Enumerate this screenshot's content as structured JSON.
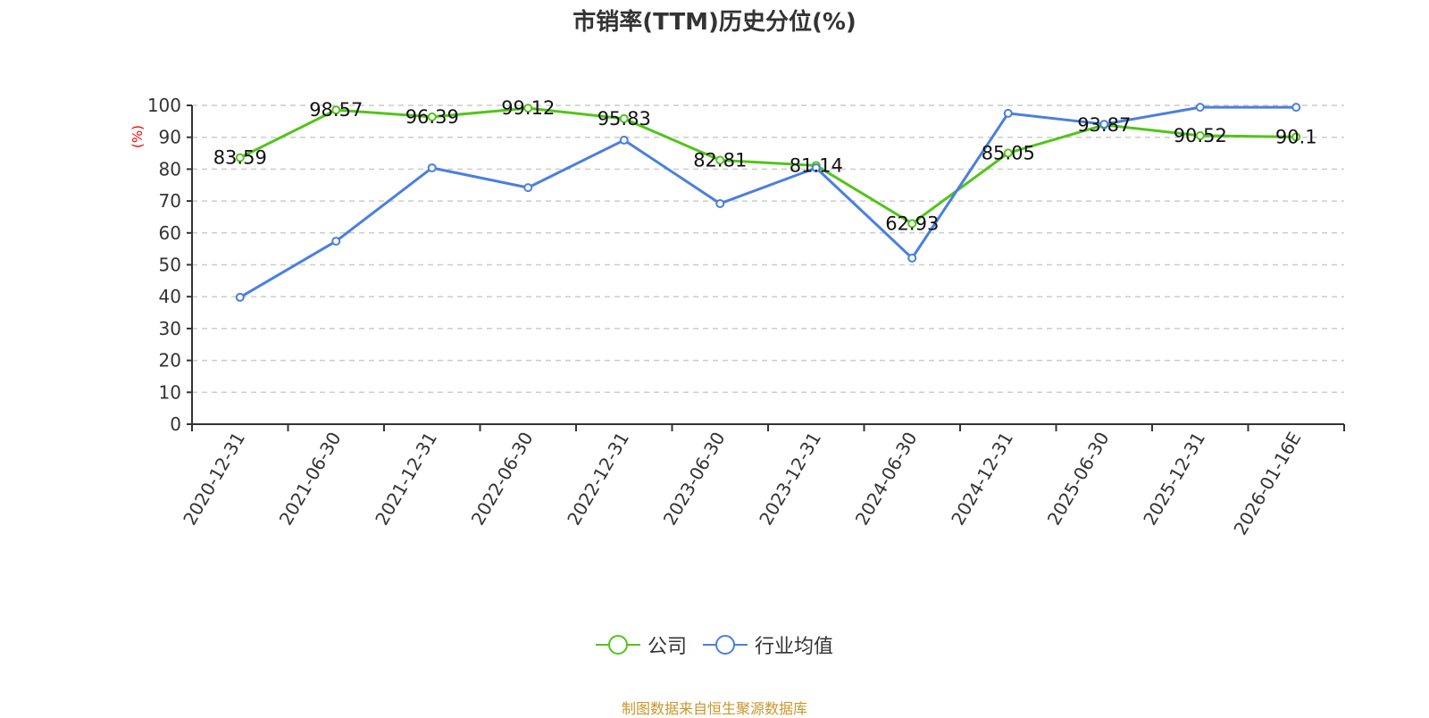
{
  "title": "市销率(TTM)历史分位(%)",
  "source_note": "制图数据来自恒生聚源数据库",
  "legend": [
    {
      "label": "公司",
      "color": "#52c41a"
    },
    {
      "label": "行业均值",
      "color": "#4a7fe0"
    }
  ],
  "y_axis_unit": "(%)",
  "chart_data": {
    "type": "line",
    "title": "市销率(TTM)历史分位(%)",
    "xlabel": "",
    "ylabel": "(%)",
    "ylim": [
      0,
      100
    ],
    "y_ticks": [
      0,
      10,
      20,
      30,
      40,
      50,
      60,
      70,
      80,
      90,
      100
    ],
    "grid": true,
    "legend_position": "bottom",
    "categories": [
      "2020-12-31",
      "2021-06-30",
      "2021-12-31",
      "2022-06-30",
      "2022-12-31",
      "2023-06-30",
      "2023-12-31",
      "2024-06-30",
      "2024-12-31",
      "2025-06-30",
      "2025-12-31",
      "2026-01-16E"
    ],
    "series": [
      {
        "name": "公司",
        "color": "#52c41a",
        "show_labels": true,
        "values": [
          83.59,
          98.57,
          96.39,
          99.12,
          95.83,
          82.81,
          81.14,
          62.93,
          85.05,
          93.87,
          90.52,
          90.1
        ]
      },
      {
        "name": "行业均值",
        "color": "#4a7fe0",
        "show_labels": false,
        "values": [
          39.8,
          57.4,
          80.4,
          74.2,
          89.1,
          69.2,
          80.4,
          52.1,
          97.5,
          94.1,
          99.4,
          99.4
        ]
      }
    ]
  }
}
